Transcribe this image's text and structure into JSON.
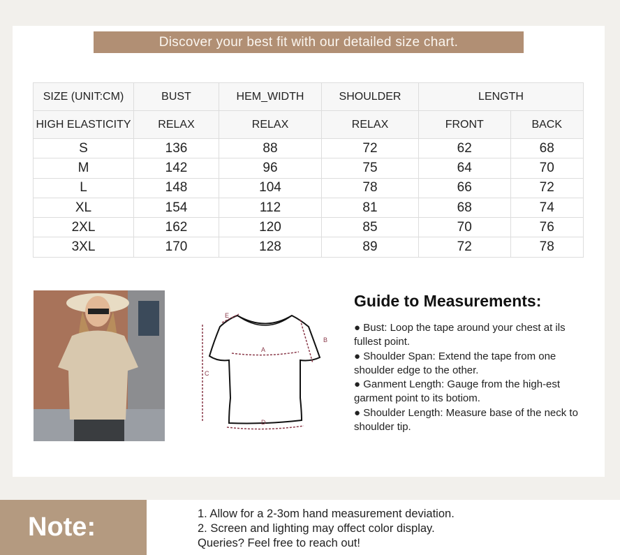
{
  "banner": "Discover your best fit with our detailed size chart.",
  "table": {
    "header1": [
      "SIZE (UNIT:CM)",
      "BUST",
      "HEM_WIDTH",
      "SHOULDER",
      "LENGTH"
    ],
    "header2": [
      "HIGH ELASTICITY",
      "RELAX",
      "RELAX",
      "RELAX",
      "FRONT",
      "BACK"
    ],
    "rows": [
      [
        "S",
        "136",
        "88",
        "72",
        "62",
        "68"
      ],
      [
        "M",
        "142",
        "96",
        "75",
        "64",
        "70"
      ],
      [
        "L",
        "148",
        "104",
        "78",
        "66",
        "72"
      ],
      [
        "XL",
        "154",
        "112",
        "81",
        "68",
        "74"
      ],
      [
        "2XL",
        "162",
        "120",
        "85",
        "70",
        "76"
      ],
      [
        "3XL",
        "170",
        "128",
        "89",
        "72",
        "78"
      ]
    ]
  },
  "diagram": {
    "labels": [
      "A",
      "B",
      "C",
      "D",
      "E"
    ],
    "line_color": "#8a3a4a"
  },
  "guide": {
    "title": "Guide to Measurements:",
    "items": [
      "Bust: Loop the tape around your chest at ils fullest point.",
      "Shoulder Span: Extend the tape from one shoulder edge to the other.",
      "Ganment Length: Gauge from the high-est garment point to its botiom.",
      "Shoulder Length: Measure base of the neck to shoulder tip."
    ]
  },
  "note": {
    "label": "Note:",
    "lines": [
      "1. Allow for a 2-3om hand measurement deviation.",
      "2. Screen and lighting may offect color display.",
      "Queries? Feel free to reach out!"
    ]
  },
  "colors": {
    "accent": "#b18f74",
    "note_bg": "#b49a80",
    "background": "#f2f0ec"
  }
}
